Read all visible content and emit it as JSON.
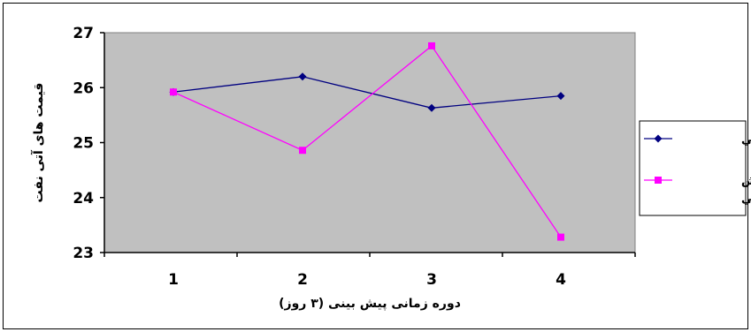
{
  "chart_data": {
    "type": "line",
    "categories": [
      "1",
      "2",
      "3",
      "4"
    ],
    "x": [
      1,
      2,
      3,
      4
    ],
    "series": [
      {
        "name": "واقعي",
        "values": [
          25.92,
          26.2,
          25.63,
          25.85
        ],
        "color": "#000080",
        "marker": "diamond"
      },
      {
        "name": "پيش بيني",
        "values": [
          25.92,
          24.86,
          26.76,
          23.28
        ],
        "color": "#ff00ff",
        "marker": "square"
      }
    ],
    "y_ticks": [
      23,
      24,
      25,
      26,
      27
    ],
    "ylim": [
      23,
      27
    ],
    "title": "",
    "xlabel": "دوره زمانی پیش بینی (۳ روز)",
    "ylabel": "قیمت های آتی نفت",
    "plot_background": "#c0c0c0",
    "grid": false,
    "legend_position": "right"
  }
}
